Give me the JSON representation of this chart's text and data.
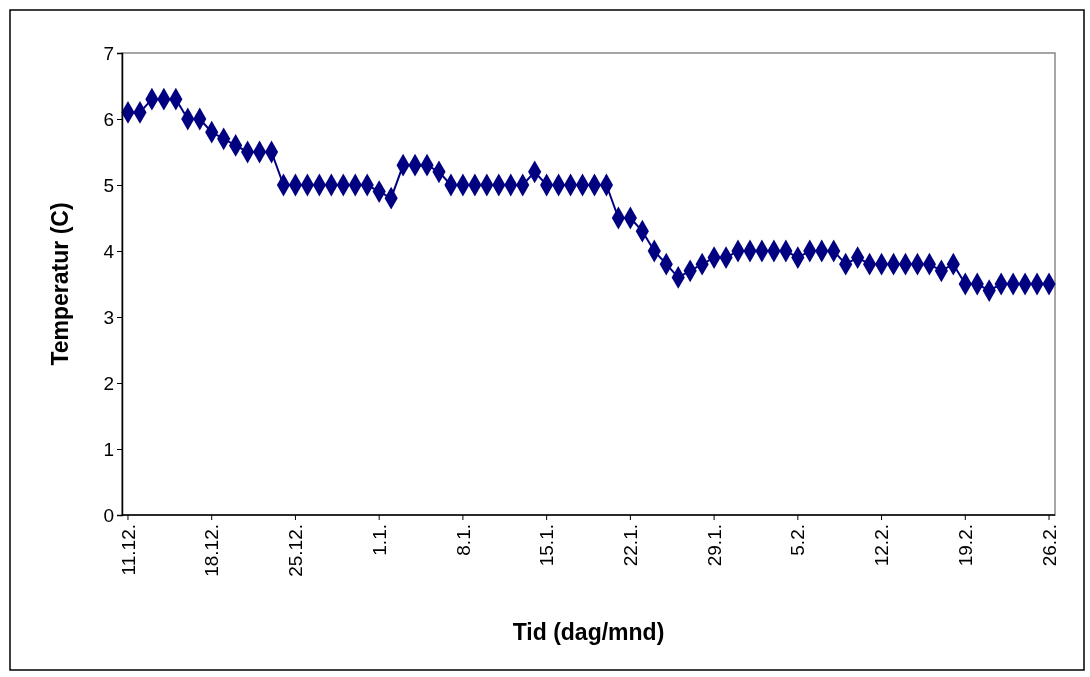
{
  "chart_data": {
    "type": "line",
    "xlabel": "Tid (dag/mnd)",
    "ylabel": "Temperatur (C)",
    "marker": "diamond",
    "grid": false,
    "categories": [
      "11.12.",
      null,
      null,
      null,
      null,
      null,
      null,
      "18.12.",
      null,
      null,
      null,
      null,
      null,
      null,
      "25.12.",
      null,
      null,
      null,
      null,
      null,
      null,
      "1.1.",
      null,
      null,
      null,
      null,
      null,
      null,
      "8.1.",
      null,
      null,
      null,
      null,
      null,
      null,
      "15.1.",
      null,
      null,
      null,
      null,
      null,
      null,
      "22.1.",
      null,
      null,
      null,
      null,
      null,
      null,
      "29.1.",
      null,
      null,
      null,
      null,
      null,
      null,
      "5.2.",
      null,
      null,
      null,
      null,
      null,
      null,
      "12.2.",
      null,
      null,
      null,
      null,
      null,
      null,
      "19.2.",
      null,
      null,
      null,
      null,
      null,
      null,
      "26.2."
    ],
    "series": [
      {
        "color": "#000080",
        "values": [
          6.1,
          6.1,
          6.3,
          6.3,
          6.3,
          6.0,
          6.0,
          5.8,
          5.7,
          5.6,
          5.5,
          5.5,
          5.5,
          5.0,
          5.0,
          5.0,
          5.0,
          5.0,
          5.0,
          5.0,
          5.0,
          4.9,
          4.8,
          5.3,
          5.3,
          5.3,
          5.2,
          5.0,
          5.0,
          5.0,
          5.0,
          5.0,
          5.0,
          5.0,
          5.2,
          5.0,
          5.0,
          5.0,
          5.0,
          5.0,
          5.0,
          4.5,
          4.5,
          4.3,
          4.0,
          3.8,
          3.6,
          3.7,
          3.8,
          3.9,
          3.9,
          4.0,
          4.0,
          4.0,
          4.0,
          4.0,
          3.9,
          4.0,
          4.0,
          4.0,
          3.8,
          3.9,
          3.8,
          3.8,
          3.8,
          3.8,
          3.8,
          3.8,
          3.7,
          3.8,
          3.5,
          3.5,
          3.4,
          3.5,
          3.5,
          3.5,
          3.5,
          3.5
        ]
      }
    ],
    "ylim": [
      0,
      7
    ],
    "yticks": [
      0,
      1,
      2,
      3,
      4,
      5,
      6,
      7
    ]
  }
}
